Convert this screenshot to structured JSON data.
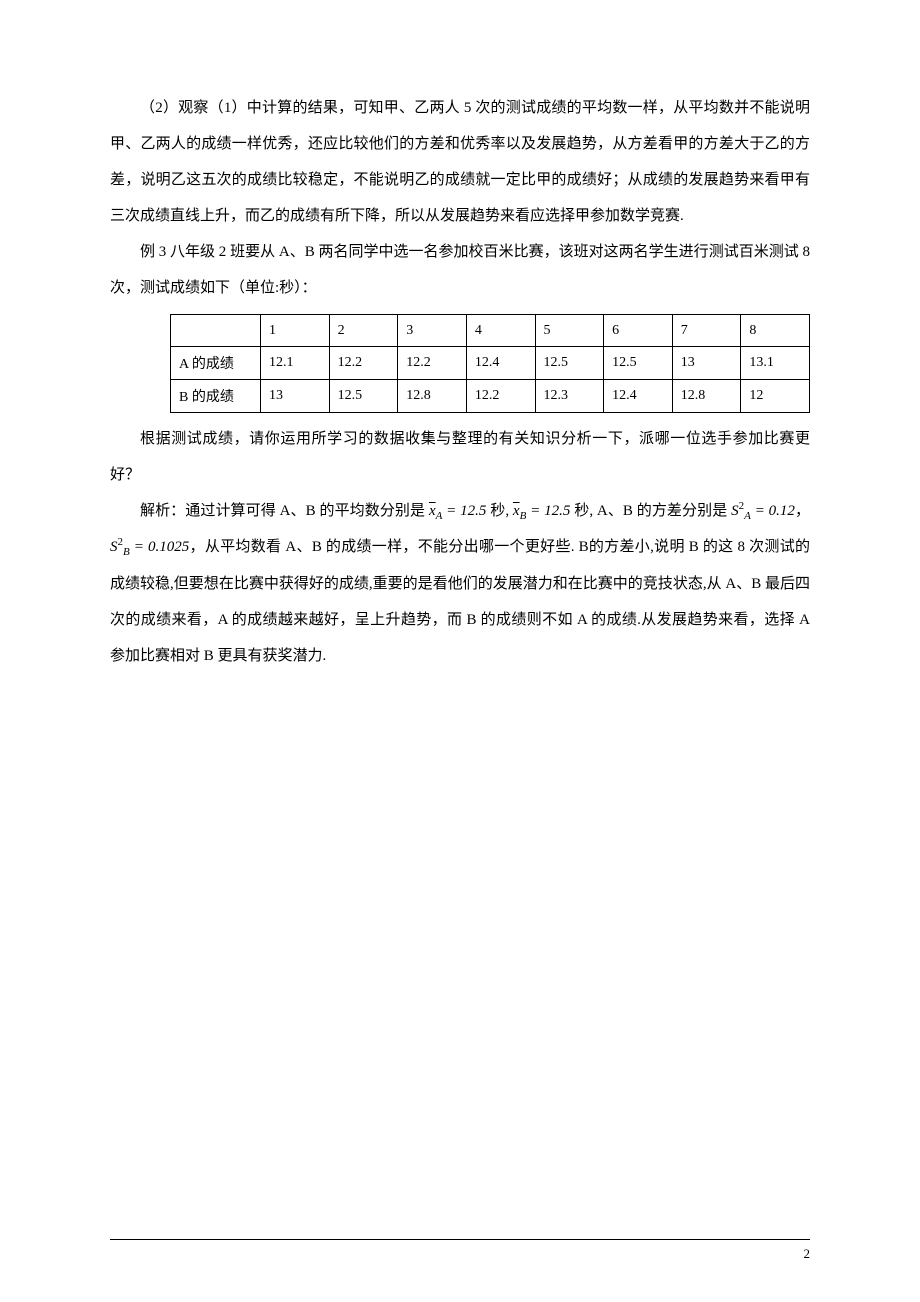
{
  "paragraphs": {
    "p1": "（2）观察（1）中计算的结果，可知甲、乙两人 5 次的测试成绩的平均数一样，从平均数并不能说明甲、乙两人的成绩一样优秀，还应比较他们的方差和优秀率以及发展趋势，从方差看甲的方差大于乙的方差，说明乙这五次的成绩比较稳定，不能说明乙的成绩就一定比甲的成绩好；从成绩的发展趋势来看甲有三次成绩直线上升，而乙的成绩有所下降，所以从发展趋势来看应选择甲参加数学竞赛.",
    "p2": "例 3 八年级 2 班要从 A、B 两名同学中选一名参加校百米比赛，该班对这两名学生进行测试百米测试 8 次，测试成绩如下（单位:秒）：",
    "p3": "根据测试成绩，请你运用所学习的数据收集与整理的有关知识分析一下，派哪一位选手参加比赛更好？",
    "p4_pre": "解析：通过计算可得 A、B 的平均数分别是 ",
    "p4_mid1": " 秒, ",
    "p4_mid2": " 秒, A、B 的方差分别是 ",
    "p4_mid3": "， ",
    "p4_post": "，从平均数看 A、B 的成绩一样，不能分出哪一个更好些. B的方差小,说明 B 的这 8 次测试的成绩较稳,但要想在比赛中获得好的成绩,重要的是看他们的发展潜力和在比赛中的竞技状态,从 A、B 最后四次的成绩来看，A 的成绩越来越好，呈上升趋势，而 B 的成绩则不如 A 的成绩.从发展趋势来看，选择 A 参加比赛相对 B 更具有获奖潜力."
  },
  "formulas": {
    "xA": "12.5",
    "xB": "12.5",
    "sA": "0.12",
    "sB": "0.1025"
  },
  "table": {
    "headers": [
      "1",
      "2",
      "3",
      "4",
      "5",
      "6",
      "7",
      "8"
    ],
    "rowA_label": "A 的成绩",
    "rowA": [
      "12.1",
      "12.2",
      "12.2",
      "12.4",
      "12.5",
      "12.5",
      "13",
      "13.1"
    ],
    "rowB_label": "B 的成绩",
    "rowB": [
      "13",
      "12.5",
      "12.8",
      "12.2",
      "12.3",
      "12.4",
      "12.8",
      "12"
    ]
  },
  "page_number": "2",
  "colors": {
    "text": "#000000",
    "background": "#ffffff",
    "border": "#000000"
  },
  "typography": {
    "body_fontsize": 15,
    "table_fontsize": 14,
    "line_height": 2.4,
    "font_family": "SimSun"
  }
}
